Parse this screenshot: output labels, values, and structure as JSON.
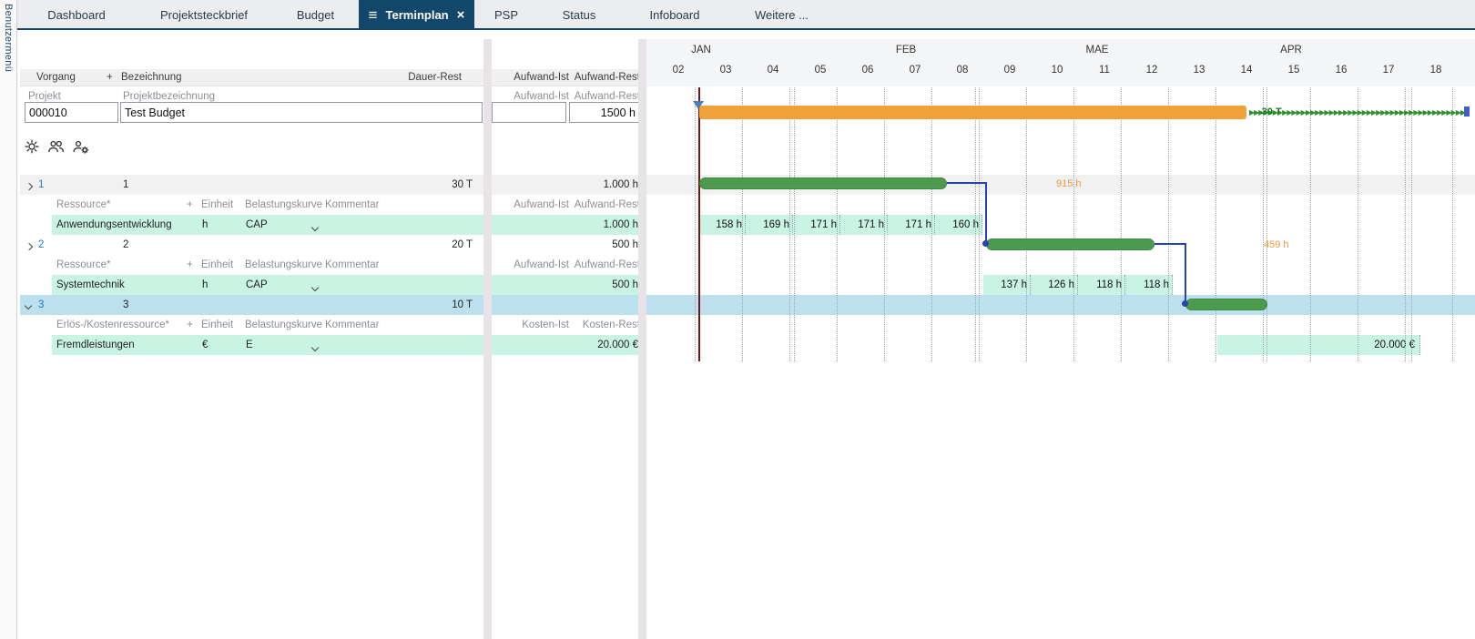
{
  "user_menu_label": "Benutzermenü",
  "tabs": [
    {
      "label": "Dashboard"
    },
    {
      "label": "Projektsteckbrief"
    },
    {
      "label": "Budget"
    },
    {
      "label": "Terminplan",
      "active": true,
      "menu_icon": "≡",
      "close_icon": "×"
    },
    {
      "label": "PSP"
    },
    {
      "label": "Status"
    },
    {
      "label": "Infoboard"
    },
    {
      "label": "Weitere ..."
    }
  ],
  "table_header": {
    "vorgang": "Vorgang",
    "add": "+",
    "bezeichnung": "Bezeichnung",
    "dauer_rest": "Dauer-Rest",
    "aufwand_ist": "Aufwand-Ist",
    "aufwand_rest": "Aufwand-Rest"
  },
  "project_header_row": {
    "vorgang": "Projekt",
    "bezeichnung": "Projektbezeichnung",
    "aufwand_ist": "Aufwand-Ist",
    "aufwand_rest": "Aufwand-Rest"
  },
  "project_row": {
    "id": "000010",
    "name": "Test Budget",
    "aufwand_ist": "",
    "aufwand_rest": "1500 h"
  },
  "toolbar_icons": [
    "settings-icon",
    "resources-icon",
    "resource-settings-icon"
  ],
  "groups": [
    {
      "nr": "1",
      "bezeichnung": "1",
      "dauer_rest": "30 T",
      "aufwand_rest": "1.000 h",
      "sub": {
        "resource_col": "Ressource*",
        "add": "+",
        "einheit": "Einheit",
        "kurve": "Belastungskurve",
        "kommentar": "Kommentar",
        "ist": "Aufwand-Ist",
        "rest": "Aufwand-Rest"
      },
      "resource": {
        "name": "Anwendungsentwicklung",
        "einheit": "h",
        "kurve": "CAP",
        "rest": "1.000 h",
        "weekly": [
          "158 h",
          "169 h",
          "171 h",
          "171 h",
          "171 h",
          "160 h"
        ]
      }
    },
    {
      "nr": "2",
      "bezeichnung": "2",
      "dauer_rest": "20 T",
      "aufwand_rest": "500 h",
      "sub": {
        "resource_col": "Ressource*",
        "add": "+",
        "einheit": "Einheit",
        "kurve": "Belastungskurve",
        "kommentar": "Kommentar",
        "ist": "Aufwand-Ist",
        "rest": "Aufwand-Rest"
      },
      "resource": {
        "name": "Systemtechnik",
        "einheit": "h",
        "kurve": "CAP",
        "rest": "500 h",
        "weekly": [
          "137 h",
          "126 h",
          "118 h",
          "118 h"
        ]
      }
    },
    {
      "nr": "3",
      "bezeichnung": "3",
      "dauer_rest": "10 T",
      "aufwand_rest": "",
      "sub": {
        "resource_col": "Erlös-/Kostenressource*",
        "add": "+",
        "einheit": "Einheit",
        "kurve": "Belastungskurve",
        "kommentar": "Kommentar",
        "ist": "Kosten-Ist",
        "rest": "Kosten-Rest"
      },
      "resource": {
        "name": "Fremdleistungen",
        "einheit": "€",
        "kurve": "E",
        "rest": "20.000 €",
        "weekly": [
          "20.000 €"
        ]
      }
    }
  ],
  "gantt": {
    "months": [
      "JAN",
      "FEB",
      "MAE",
      "APR"
    ],
    "weeks": [
      "02",
      "03",
      "04",
      "05",
      "06",
      "07",
      "08",
      "09",
      "10",
      "11",
      "12",
      "13",
      "14",
      "15",
      "16",
      "17",
      "18"
    ],
    "today_week": "02",
    "project_bar": {
      "from_week": "03",
      "to_week": "14",
      "buffer_label": "-30 T",
      "buffer_to_week": "18"
    },
    "bars": [
      {
        "group": "1",
        "from_week": "03",
        "to_week": "08",
        "remaining_label": "915 h"
      },
      {
        "group": "2",
        "from_week": "09",
        "to_week": "12",
        "remaining_label": "459 h"
      },
      {
        "group": "3",
        "from_week": "13",
        "to_week": "14",
        "remaining_label": ""
      }
    ]
  },
  "colors": {
    "accent_navy": "#12476b",
    "bar_orange": "#f1a13a",
    "bar_green": "#4c9a4e",
    "row_teal": "#c9f3e3",
    "row_selected": "#bde0ef",
    "today_line": "#7c1214",
    "label_orange": "#ee9b3d",
    "buffer_green": "#1e7d1e",
    "connector_blue": "#2743b0"
  }
}
